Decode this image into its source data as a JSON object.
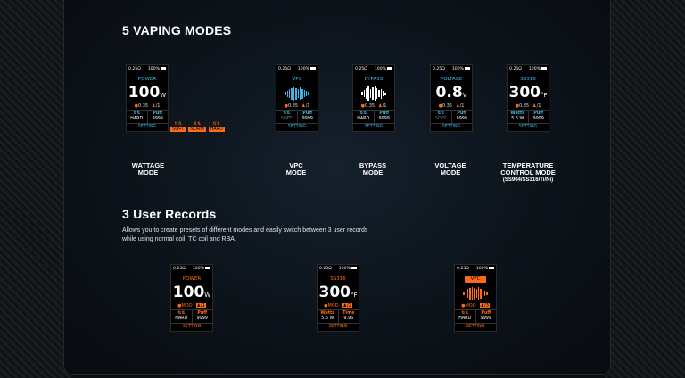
{
  "section1": {
    "title": "5 VAPING MODES",
    "modes": [
      {
        "status_res": "0.25Ω",
        "status_batt": "100%",
        "mode": "POWER",
        "big": "100",
        "unit": "W",
        "info_res": "0.35",
        "info_rec": "1",
        "cell1_top": "⇅⇅",
        "cell1_bottom": "HARD",
        "cell2_top": "Puff",
        "cell2_bottom": "9999",
        "setting": "SETTING",
        "label": "WATTAGE\nMODE"
      },
      {
        "status_res": "0.25Ω",
        "status_batt": "100%",
        "mode": "VPC",
        "info_res": "0.35",
        "info_rec": "1",
        "cell1_top": "⇅⇅",
        "cell1_bottom": "SOFT",
        "cell2_top": "Puff",
        "cell2_bottom": "9999",
        "setting": "SETTING",
        "label": "VPC\nMODE"
      },
      {
        "status_res": "0.25Ω",
        "status_batt": "100%",
        "mode": "BYPASS",
        "info_res": "0.35",
        "info_rec": "1",
        "cell1_top": "⇅⇅",
        "cell1_bottom": "HARD",
        "cell2_top": "Puff",
        "cell2_bottom": "9999",
        "setting": "SETTING",
        "label": "BYPASS\nMODE"
      },
      {
        "status_res": "0.25Ω",
        "status_batt": "100%",
        "mode": "VOLTAGE",
        "big": "0.8",
        "unit": "V",
        "info_res": "0.35",
        "info_rec": "1",
        "cell1_top": "⇅⇅",
        "cell1_bottom": "SOFT",
        "cell2_top": "Puff",
        "cell2_bottom": "9999",
        "setting": "SETTING",
        "label": "VOLTAGE\nMODE"
      },
      {
        "status_res": "0.25Ω",
        "status_batt": "100%",
        "mode": "SS316",
        "big": "300",
        "unit": "°F",
        "info_res": "0.35",
        "info_rec": "1",
        "cell1_top": "Watts",
        "cell1_bottom": "5.6 W",
        "cell2_top": "Puff",
        "cell2_bottom": "9999",
        "setting": "SETTING",
        "label": "TEMPERATURE\nCONTROL MODE",
        "sublabel": "(SS904/SS316/Ti/Ni)"
      }
    ],
    "curves": [
      "SOFT",
      "NORM",
      "HARD"
    ]
  },
  "section2": {
    "title": "3 User Records",
    "description": "Allows you to create presets of different modes and easily switch between 3 user records while using normal coil, TC coil and RBA.",
    "records": [
      {
        "status_res": "0.25Ω",
        "status_batt": "100%",
        "mode": "POWER",
        "big": "100",
        "unit": "W",
        "info_mod": "MOD",
        "info_rec": "1",
        "cell1_top": "⇅⇅",
        "cell1_bottom": "HARD",
        "cell2_top": "Puff",
        "cell2_bottom": "9999",
        "setting": "SETTING"
      },
      {
        "status_res": "0.25Ω",
        "status_batt": "100%",
        "mode": "SS316",
        "big": "300",
        "unit": "°F",
        "info_mod": "MOD",
        "info_rec": "2",
        "cell1_top": "Watts",
        "cell1_bottom": "5.6 W",
        "cell2_top": "Time",
        "cell2_bottom": "9.9S",
        "setting": "SETTING"
      },
      {
        "status_res": "0.25Ω",
        "status_batt": "100%",
        "mode": "VPC",
        "info_mod": "MOD",
        "info_rec": "3",
        "cell1_top": "⇅⇅",
        "cell1_bottom": "HARD",
        "cell2_top": "Puff",
        "cell2_bottom": "9999",
        "setting": "SETTING"
      }
    ]
  },
  "colors": {
    "accent_blue": "#3fb8e8",
    "accent_orange": "#ff6a1a",
    "background": "#0b0d10"
  }
}
